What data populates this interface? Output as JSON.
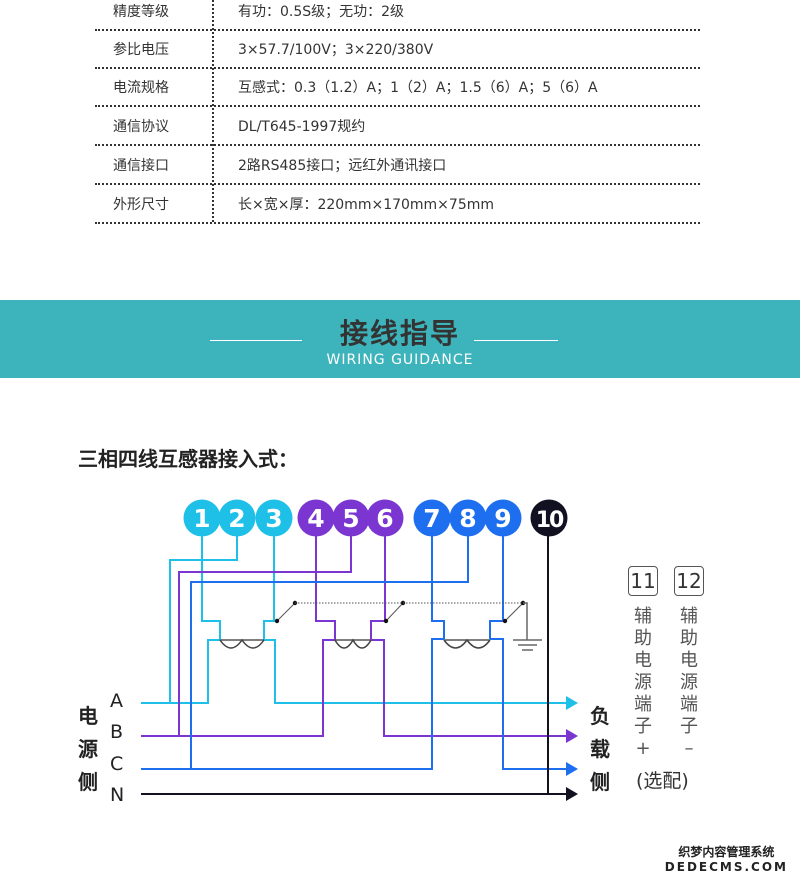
{
  "specs": [
    {
      "label": "精度等级",
      "value": "有功：0.5S级；无功：2级"
    },
    {
      "label": "参比电压",
      "value": "3×57.7/100V；3×220/380V"
    },
    {
      "label": "电流规格",
      "value": "互感式：0.3（1.2）A；1（2）A；1.5（6）A；5（6）A"
    },
    {
      "label": "通信协议",
      "value": "DL/T645-1997规约"
    },
    {
      "label": "通信接口",
      "value": "2路RS485接口；远红外通讯接口"
    },
    {
      "label": "外形尺寸",
      "value": "长×宽×厚：220mm×170mm×75mm"
    }
  ],
  "banner": {
    "title": "接线指导",
    "subtitle": "WIRING GUIDANCE",
    "color": "#3db3bb"
  },
  "diagram": {
    "heading": "三相四线互感器接入式：",
    "source_label": [
      "电",
      "源",
      "侧"
    ],
    "load_label": [
      "负",
      "载",
      "侧"
    ],
    "phases": [
      "A",
      "B",
      "C",
      "N"
    ],
    "terminals": [
      "1",
      "2",
      "3",
      "4",
      "5",
      "6",
      "7",
      "8",
      "9",
      "10"
    ],
    "colors": {
      "A": "#1ec0e8",
      "B": "#7b35d0",
      "C": "#1e6ef0",
      "N": "#111122"
    },
    "aux": [
      {
        "number": "11",
        "text": [
          "辅",
          "助",
          "电",
          "源",
          "端",
          "子",
          "+"
        ]
      },
      {
        "number": "12",
        "text": [
          "辅",
          "助",
          "电",
          "源",
          "端",
          "子",
          "–"
        ]
      }
    ],
    "optional": "(选配)"
  },
  "watermark": {
    "line1": "织梦内容管理系统",
    "line2": "DEDECMS.COM"
  }
}
